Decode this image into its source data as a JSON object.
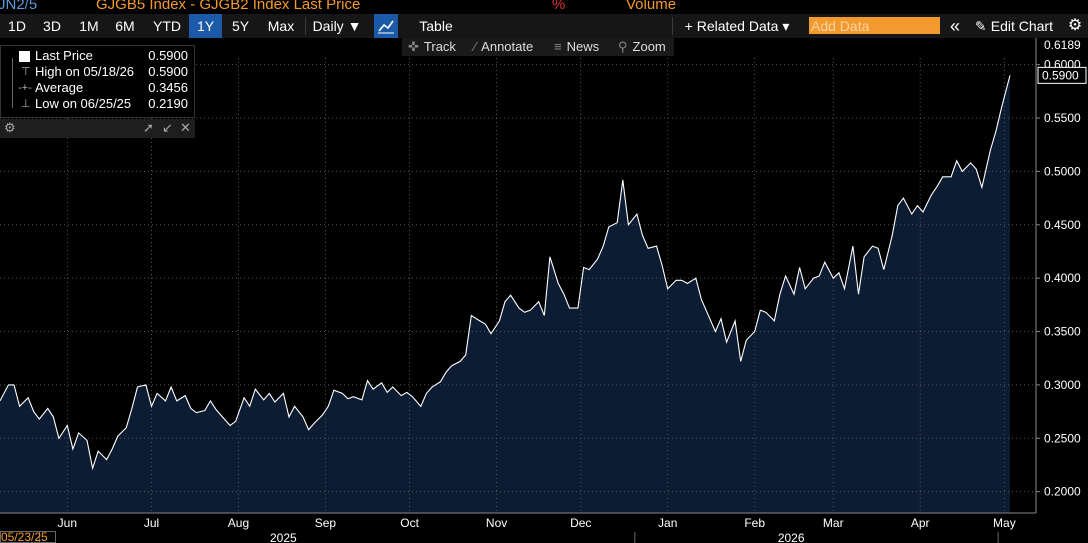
{
  "titlebar": {
    "ticker_fragment": "JN2/5",
    "series_title": "GJGB5 Index - GJGB2 Index Last Price",
    "percent_label": "%",
    "volume_label": "Volume"
  },
  "toolbar": {
    "ranges": [
      "1D",
      "3D",
      "1M",
      "6M",
      "YTD",
      "1Y",
      "5Y",
      "Max"
    ],
    "active_range": "1Y",
    "frequency": "Daily ▼",
    "table_label": "Table",
    "related_data": "+ Related Data ▾",
    "add_data_placeholder": "Add Data",
    "collapse_icon": "«",
    "edit_chart": "Edit Chart",
    "edit_icon": "pencil-icon",
    "settings_icon": "gear-icon"
  },
  "subbar": {
    "track": "Track",
    "annotate": "Annotate",
    "news": "News",
    "zoom": "Zoom"
  },
  "legend": {
    "rows": [
      {
        "label": "Last Price",
        "value": "0.5900"
      },
      {
        "label": "High on 05/18/26",
        "value": "0.5900"
      },
      {
        "label": "Average",
        "value": "0.3456"
      },
      {
        "label": "Low on 06/25/25",
        "value": "0.2190"
      }
    ]
  },
  "colors": {
    "background": "#000000",
    "area_fill": "#0c1c33",
    "line": "#ffffff",
    "accent_orange": "#f39a2e",
    "active_blue": "#1a5aa8"
  },
  "date_box": "05/23/25",
  "chart_data": {
    "type": "area",
    "title": "GJGB5 Index - GJGB2 Index Last Price",
    "xlabel": "",
    "ylabel": "",
    "ylim": [
      0.18,
      0.625
    ],
    "yticks": [
      "0.2000",
      "0.2500",
      "0.3000",
      "0.3500",
      "0.4000",
      "0.4500",
      "0.5000",
      "0.5500",
      "0.6000"
    ],
    "y_tick_values": [
      0.2,
      0.25,
      0.3,
      0.35,
      0.4,
      0.45,
      0.5,
      0.55,
      0.6
    ],
    "x_month_labels": [
      {
        "label": "May",
        "date": "2025-05-16"
      },
      {
        "label": "Jun",
        "date": "2025-06-16"
      },
      {
        "label": "Jul",
        "date": "2025-07-16"
      },
      {
        "label": "Aug",
        "date": "2025-08-16"
      },
      {
        "label": "Sep",
        "date": "2025-09-16"
      },
      {
        "label": "Oct",
        "date": "2025-10-16"
      },
      {
        "label": "Nov",
        "date": "2025-11-16"
      },
      {
        "label": "Dec",
        "date": "2025-12-16"
      },
      {
        "label": "Jan",
        "date": "2026-01-16"
      },
      {
        "label": "Feb",
        "date": "2026-02-16"
      },
      {
        "label": "Mar",
        "date": "2026-03-16"
      },
      {
        "label": "Apr",
        "date": "2026-04-16"
      },
      {
        "label": "May",
        "date": "2026-05-16"
      }
    ],
    "year_labels": [
      {
        "label": "2025",
        "date": "2025-09-01"
      },
      {
        "label": "2026",
        "date": "2026-03-01"
      }
    ],
    "top_marker": "0.6189",
    "last_price_marker": "0.5900",
    "grid": true,
    "legend_position": "top-left",
    "series": [
      {
        "name": "Last Price",
        "x": [
          "2025-05-23",
          "2025-05-26",
          "2025-05-28",
          "2025-05-30",
          "2025-06-02",
          "2025-06-04",
          "2025-06-06",
          "2025-06-09",
          "2025-06-11",
          "2025-06-13",
          "2025-06-16",
          "2025-06-18",
          "2025-06-20",
          "2025-06-23",
          "2025-06-25",
          "2025-06-27",
          "2025-06-30",
          "2025-07-02",
          "2025-07-04",
          "2025-07-07",
          "2025-07-09",
          "2025-07-11",
          "2025-07-14",
          "2025-07-16",
          "2025-07-18",
          "2025-07-21",
          "2025-07-23",
          "2025-07-25",
          "2025-07-28",
          "2025-07-30",
          "2025-08-01",
          "2025-08-04",
          "2025-08-06",
          "2025-08-08",
          "2025-08-11",
          "2025-08-13",
          "2025-08-15",
          "2025-08-18",
          "2025-08-20",
          "2025-08-22",
          "2025-08-25",
          "2025-08-27",
          "2025-08-29",
          "2025-09-01",
          "2025-09-03",
          "2025-09-05",
          "2025-09-08",
          "2025-09-10",
          "2025-09-12",
          "2025-09-15",
          "2025-09-17",
          "2025-09-19",
          "2025-09-22",
          "2025-09-24",
          "2025-09-26",
          "2025-09-29",
          "2025-10-01",
          "2025-10-03",
          "2025-10-06",
          "2025-10-08",
          "2025-10-10",
          "2025-10-13",
          "2025-10-15",
          "2025-10-17",
          "2025-10-20",
          "2025-10-22",
          "2025-10-24",
          "2025-10-27",
          "2025-10-29",
          "2025-10-31",
          "2025-11-03",
          "2025-11-05",
          "2025-11-07",
          "2025-11-10",
          "2025-11-12",
          "2025-11-14",
          "2025-11-17",
          "2025-11-19",
          "2025-11-21",
          "2025-11-24",
          "2025-11-26",
          "2025-11-28",
          "2025-12-01",
          "2025-12-03",
          "2025-12-05",
          "2025-12-08",
          "2025-12-10",
          "2025-12-12",
          "2025-12-15",
          "2025-12-17",
          "2025-12-19",
          "2025-12-22",
          "2025-12-24",
          "2025-12-26",
          "2025-12-29",
          "2025-12-31",
          "2026-01-02",
          "2026-01-05",
          "2026-01-07",
          "2026-01-09",
          "2026-01-12",
          "2026-01-14",
          "2026-01-16",
          "2026-01-19",
          "2026-01-21",
          "2026-01-23",
          "2026-01-26",
          "2026-01-28",
          "2026-01-30",
          "2026-02-02",
          "2026-02-04",
          "2026-02-06",
          "2026-02-09",
          "2026-02-11",
          "2026-02-13",
          "2026-02-16",
          "2026-02-18",
          "2026-02-20",
          "2026-02-23",
          "2026-02-25",
          "2026-02-27",
          "2026-03-02",
          "2026-03-04",
          "2026-03-06",
          "2026-03-09",
          "2026-03-11",
          "2026-03-13",
          "2026-03-16",
          "2026-03-18",
          "2026-03-20",
          "2026-03-23",
          "2026-03-25",
          "2026-03-27",
          "2026-03-30",
          "2026-04-01",
          "2026-04-03",
          "2026-04-06",
          "2026-04-08",
          "2026-04-10",
          "2026-04-13",
          "2026-04-15",
          "2026-04-17",
          "2026-04-20",
          "2026-04-22",
          "2026-04-24",
          "2026-04-27",
          "2026-04-29",
          "2026-05-01",
          "2026-05-04",
          "2026-05-06",
          "2026-05-08",
          "2026-05-11",
          "2026-05-13",
          "2026-05-15",
          "2026-05-18"
        ],
        "values": [
          0.285,
          0.3,
          0.3,
          0.28,
          0.288,
          0.275,
          0.268,
          0.278,
          0.27,
          0.25,
          0.262,
          0.24,
          0.255,
          0.248,
          0.222,
          0.238,
          0.23,
          0.24,
          0.252,
          0.26,
          0.278,
          0.298,
          0.3,
          0.28,
          0.292,
          0.285,
          0.298,
          0.285,
          0.29,
          0.278,
          0.274,
          0.276,
          0.285,
          0.277,
          0.268,
          0.262,
          0.266,
          0.288,
          0.28,
          0.296,
          0.286,
          0.292,
          0.284,
          0.292,
          0.27,
          0.28,
          0.27,
          0.258,
          0.264,
          0.272,
          0.28,
          0.295,
          0.292,
          0.287,
          0.289,
          0.286,
          0.304,
          0.296,
          0.302,
          0.293,
          0.298,
          0.29,
          0.293,
          0.289,
          0.28,
          0.292,
          0.298,
          0.303,
          0.312,
          0.318,
          0.322,
          0.328,
          0.365,
          0.36,
          0.357,
          0.348,
          0.36,
          0.378,
          0.384,
          0.372,
          0.368,
          0.37,
          0.378,
          0.365,
          0.42,
          0.395,
          0.385,
          0.372,
          0.372,
          0.41,
          0.408,
          0.418,
          0.43,
          0.448,
          0.452,
          0.492,
          0.45,
          0.46,
          0.44,
          0.428,
          0.43,
          0.412,
          0.39,
          0.398,
          0.398,
          0.395,
          0.4,
          0.38,
          0.368,
          0.35,
          0.362,
          0.34,
          0.36,
          0.322,
          0.342,
          0.35,
          0.37,
          0.368,
          0.36,
          0.385,
          0.402,
          0.385,
          0.41,
          0.39,
          0.4,
          0.402,
          0.415,
          0.4,
          0.405,
          0.39,
          0.43,
          0.385,
          0.42,
          0.43,
          0.428,
          0.408,
          0.44,
          0.468,
          0.475,
          0.46,
          0.468,
          0.462,
          0.478,
          0.486,
          0.495,
          0.495,
          0.51,
          0.5,
          0.508,
          0.502,
          0.485,
          0.52,
          0.538,
          0.56,
          0.59
        ]
      }
    ]
  }
}
